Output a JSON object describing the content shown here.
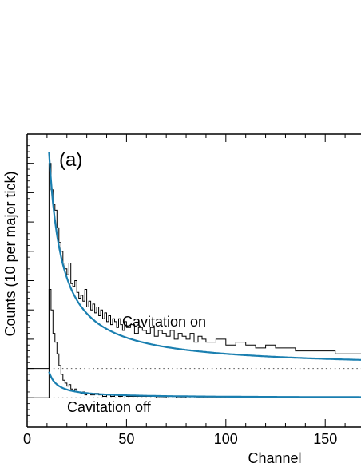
{
  "chart_data": {
    "type": "line",
    "panel_label": "(a)",
    "xlabel": "Channel",
    "ylabel": "Counts (10 per major tick)",
    "xlim": [
      0,
      168
    ],
    "ylim_ticks": [
      -1,
      9
    ],
    "x_ticks": [
      0,
      50,
      100,
      150
    ],
    "x_tick_labels": [
      "0",
      "50",
      "100",
      "150"
    ],
    "y_major_tick_count": 9,
    "grid": false,
    "legend": "none",
    "colors": {
      "fit": "#1a7fb0",
      "histogram": "#000000",
      "baseline": "#555555"
    },
    "annotations": [
      {
        "text": "Cavitation on",
        "series": "on"
      },
      {
        "text": "Cavitation off",
        "series": "off"
      }
    ],
    "series": [
      {
        "id": "on",
        "baseline": 1.0,
        "fit": {
          "start": 11,
          "a": 47.9,
          "c": 6.48
        },
        "histogram": [
          [
            11,
            7.0
          ],
          [
            12,
            6.1
          ],
          [
            13,
            5.6
          ],
          [
            14,
            5.4
          ],
          [
            15,
            4.8
          ],
          [
            16,
            4.3
          ],
          [
            17,
            4.0
          ],
          [
            18,
            3.6
          ],
          [
            19,
            3.4
          ],
          [
            20,
            3.2
          ],
          [
            21,
            3.6
          ],
          [
            22,
            2.9
          ],
          [
            23,
            2.8
          ],
          [
            24,
            3.0
          ],
          [
            25,
            2.6
          ],
          [
            26,
            2.4
          ],
          [
            27,
            2.5
          ],
          [
            28,
            2.3
          ],
          [
            29,
            2.7
          ],
          [
            30,
            2.1
          ],
          [
            31,
            2.3
          ],
          [
            32,
            2.0
          ],
          [
            33,
            2.2
          ],
          [
            34,
            1.9
          ],
          [
            35,
            2.1
          ],
          [
            36,
            1.8
          ],
          [
            37,
            2.0
          ],
          [
            38,
            1.7
          ],
          [
            39,
            1.9
          ],
          [
            40,
            1.6
          ],
          [
            41,
            1.8
          ],
          [
            42,
            1.5
          ],
          [
            43,
            1.7
          ],
          [
            44,
            1.6
          ],
          [
            45,
            1.4
          ],
          [
            46,
            1.7
          ],
          [
            47,
            1.5
          ],
          [
            48,
            1.3
          ],
          [
            49,
            1.6
          ],
          [
            50,
            1.4
          ],
          [
            52,
            1.5
          ],
          [
            54,
            1.2
          ],
          [
            56,
            1.4
          ],
          [
            58,
            1.3
          ],
          [
            60,
            1.2
          ],
          [
            62,
            1.4
          ],
          [
            64,
            1.1
          ],
          [
            66,
            1.3
          ],
          [
            68,
            1.2
          ],
          [
            70,
            1.1
          ],
          [
            72,
            1.3
          ],
          [
            74,
            1.0
          ],
          [
            76,
            1.2
          ],
          [
            78,
            1.1
          ],
          [
            80,
            1.0
          ],
          [
            82,
            1.2
          ],
          [
            84,
            0.9
          ],
          [
            86,
            1.1
          ],
          [
            88,
            1.0
          ],
          [
            90,
            0.9
          ],
          [
            95,
            1.0
          ],
          [
            100,
            0.8
          ],
          [
            105,
            0.9
          ],
          [
            110,
            0.8
          ],
          [
            115,
            0.7
          ],
          [
            120,
            0.8
          ],
          [
            125,
            0.7
          ],
          [
            130,
            0.7
          ],
          [
            135,
            0.6
          ],
          [
            140,
            0.6
          ],
          [
            145,
            0.6
          ],
          [
            150,
            0.6
          ],
          [
            155,
            0.5
          ],
          [
            160,
            0.5
          ],
          [
            165,
            0.5
          ]
        ]
      },
      {
        "id": "off",
        "baseline": 0.0,
        "fit": {
          "start": 11,
          "a": 3.72,
          "c": 4.18
        },
        "histogram": [
          [
            11,
            3.7
          ],
          [
            12,
            3.0
          ],
          [
            13,
            2.2
          ],
          [
            14,
            1.9
          ],
          [
            15,
            1.5
          ],
          [
            16,
            1.1
          ],
          [
            17,
            0.8
          ],
          [
            18,
            0.6
          ],
          [
            19,
            0.5
          ],
          [
            20,
            0.4
          ],
          [
            21,
            0.45
          ],
          [
            22,
            0.3
          ],
          [
            23,
            0.25
          ],
          [
            24,
            0.3
          ],
          [
            25,
            0.2
          ],
          [
            26,
            0.2
          ],
          [
            27,
            0.15
          ],
          [
            28,
            0.2
          ],
          [
            29,
            0.1
          ],
          [
            30,
            0.15
          ],
          [
            32,
            0.1
          ],
          [
            34,
            0.15
          ],
          [
            36,
            0.1
          ],
          [
            38,
            0.05
          ],
          [
            40,
            0.1
          ],
          [
            42,
            0.05
          ],
          [
            44,
            0.1
          ],
          [
            46,
            0.05
          ],
          [
            48,
            0.1
          ],
          [
            50,
            0.05
          ],
          [
            55,
            0.05
          ],
          [
            60,
            0.05
          ],
          [
            65,
            0.0
          ],
          [
            70,
            0.05
          ],
          [
            75,
            0.0
          ],
          [
            80,
            0.05
          ],
          [
            85,
            0.0
          ],
          [
            90,
            0.0
          ],
          [
            95,
            0.0
          ],
          [
            100,
            0.0
          ],
          [
            110,
            0.0
          ],
          [
            120,
            0.0
          ],
          [
            130,
            0.0
          ],
          [
            140,
            0.0
          ],
          [
            150,
            0.0
          ],
          [
            160,
            0.0
          ],
          [
            165,
            0.0
          ]
        ]
      }
    ]
  }
}
